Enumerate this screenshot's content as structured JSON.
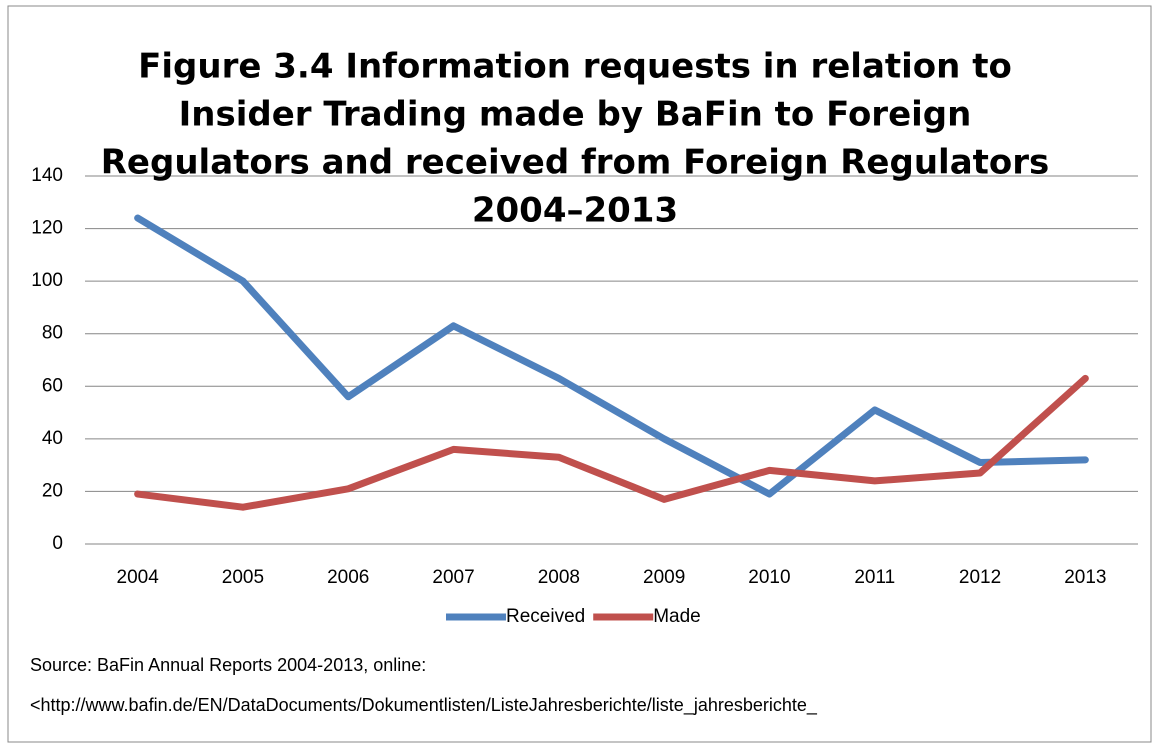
{
  "chart_data": {
    "type": "line",
    "title": [
      "Figure 3.4 Information requests in relation to",
      "Insider Trading made by BaFin to Foreign",
      "Regulators and received from Foreign Regulators",
      "2004–2013"
    ],
    "categories": [
      "2004",
      "2005",
      "2006",
      "2007",
      "2008",
      "2009",
      "2010",
      "2011",
      "2012",
      "2013"
    ],
    "series": [
      {
        "name": "Received",
        "color": "#4f81bd",
        "values": [
          124,
          100,
          56,
          83,
          63,
          40,
          19,
          51,
          31,
          32
        ]
      },
      {
        "name": "Made",
        "color": "#c0504d",
        "values": [
          19,
          14,
          21,
          36,
          33,
          17,
          28,
          24,
          27,
          63
        ]
      }
    ],
    "ylim": [
      0,
      140
    ],
    "yticks": [
      0,
      20,
      40,
      60,
      80,
      100,
      120,
      140
    ],
    "grid": true,
    "legend": "bottom"
  },
  "notes": [
    "Source: BaFin Annual Reports 2004-2013, online:",
    "<http://www.bafin.de/EN/DataDocuments/Dokumentlisten/ListeJahresberichte/liste_jahresberichte_"
  ]
}
